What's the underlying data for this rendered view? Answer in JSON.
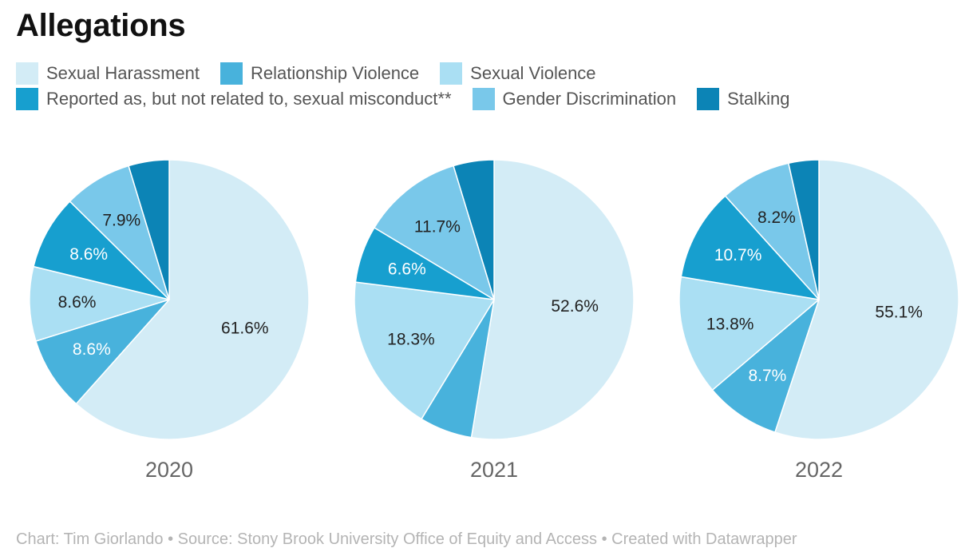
{
  "title": "Allegations",
  "legend": [
    {
      "label": "Sexual Harassment",
      "color": "#d3ecf6"
    },
    {
      "label": "Relationship Violence",
      "color": "#48b2dc"
    },
    {
      "label": "Sexual Violence",
      "color": "#aadff3"
    },
    {
      "label": "Reported as, but not related to, sexual misconduct**",
      "color": "#179fcf"
    },
    {
      "label": "Gender Discrimination",
      "color": "#79c8ea"
    },
    {
      "label": "Stalking",
      "color": "#0c84b6"
    }
  ],
  "chart_data": [
    {
      "type": "pie",
      "year": "2020",
      "slices": [
        {
          "category": "Sexual Harassment",
          "value": 61.6,
          "label": "61.6%"
        },
        {
          "category": "Relationship Violence",
          "value": 8.6,
          "label": "8.6%"
        },
        {
          "category": "Sexual Violence",
          "value": 8.6,
          "label": "8.6%"
        },
        {
          "category": "Reported as, but not related to, sexual misconduct**",
          "value": 8.6,
          "label": "8.6%"
        },
        {
          "category": "Gender Discrimination",
          "value": 7.9,
          "label": "7.9%"
        },
        {
          "category": "Stalking",
          "value": 4.7,
          "label": ""
        }
      ]
    },
    {
      "type": "pie",
      "year": "2021",
      "slices": [
        {
          "category": "Sexual Harassment",
          "value": 52.6,
          "label": "52.6%"
        },
        {
          "category": "Relationship Violence",
          "value": 6.1,
          "label": ""
        },
        {
          "category": "Sexual Violence",
          "value": 18.3,
          "label": "18.3%"
        },
        {
          "category": "Reported as, but not related to, sexual misconduct**",
          "value": 6.6,
          "label": "6.6%"
        },
        {
          "category": "Gender Discrimination",
          "value": 11.7,
          "label": "11.7%"
        },
        {
          "category": "Stalking",
          "value": 4.7,
          "label": ""
        }
      ]
    },
    {
      "type": "pie",
      "year": "2022",
      "slices": [
        {
          "category": "Sexual Harassment",
          "value": 55.1,
          "label": "55.1%"
        },
        {
          "category": "Relationship Violence",
          "value": 8.7,
          "label": "8.7%"
        },
        {
          "category": "Sexual Violence",
          "value": 13.8,
          "label": "13.8%"
        },
        {
          "category": "Reported as, but not related to, sexual misconduct**",
          "value": 10.7,
          "label": "10.7%"
        },
        {
          "category": "Gender Discrimination",
          "value": 8.2,
          "label": "8.2%"
        },
        {
          "category": "Stalking",
          "value": 3.5,
          "label": ""
        }
      ]
    }
  ],
  "footer": "Chart: Tim Giorlando • Source: Stony Brook University Office of Equity and Access • Created with Datawrapper"
}
